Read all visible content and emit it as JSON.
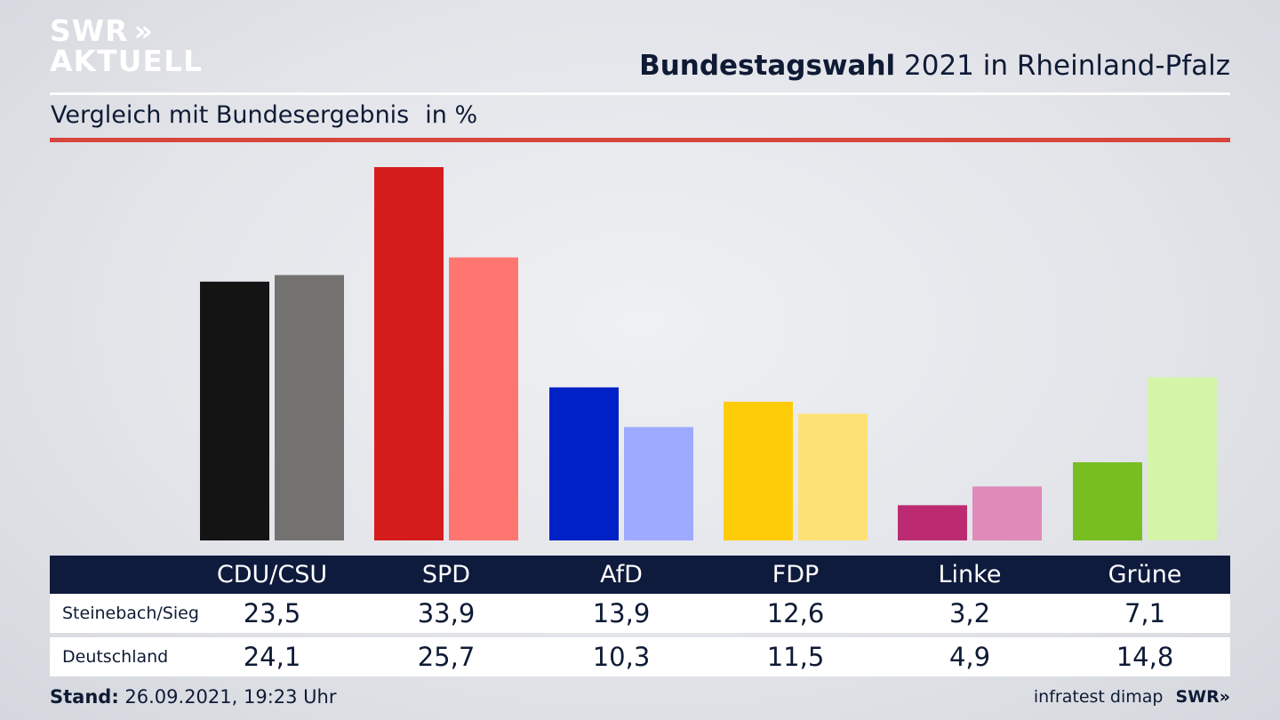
{
  "logo": {
    "line1": "SWR",
    "chevrons": "»",
    "line2": "AKTUELL"
  },
  "title": {
    "bold": "Bundestagswahl",
    "rest": " 2021 in Rheinland-Pfalz"
  },
  "subtitle": {
    "text": "Vergleich mit Bundesergebnis",
    "unit": "in %"
  },
  "table": {
    "rows": [
      {
        "label": "Steinebach/Sieg",
        "values": [
          "23,5",
          "33,9",
          "13,9",
          "12,6",
          "3,2",
          "7,1"
        ]
      },
      {
        "label": "Deutschland",
        "values": [
          "24,1",
          "25,7",
          "10,3",
          "11,5",
          "4,9",
          "14,8"
        ]
      }
    ]
  },
  "footer": {
    "stand_label": "Stand:",
    "stand_value": " 26.09.2021, 19:23 Uhr",
    "source": "infratest dimap",
    "brand": "SWR»"
  },
  "chart_data": {
    "type": "bar",
    "categories": [
      "CDU/CSU",
      "SPD",
      "AfD",
      "FDP",
      "Linke",
      "Grüne"
    ],
    "series": [
      {
        "name": "Steinebach/Sieg",
        "values": [
          23.5,
          33.9,
          13.9,
          12.6,
          3.2,
          7.1
        ]
      },
      {
        "name": "Deutschland",
        "values": [
          24.1,
          25.7,
          10.3,
          11.5,
          4.9,
          14.8
        ]
      }
    ],
    "colors": {
      "Steinebach/Sieg": [
        "#141414",
        "#d41c1c",
        "#0021c6",
        "#ffcc0a",
        "#bc2b72",
        "#79be21"
      ],
      "Deutschland": [
        "#737270",
        "#ff7570",
        "#9eaaff",
        "#fee174",
        "#df8ab9",
        "#d4f5a8"
      ]
    },
    "title": "Bundestagswahl 2021 in Rheinland-Pfalz",
    "ylabel": "in %",
    "ylim": [
      0,
      34
    ]
  }
}
